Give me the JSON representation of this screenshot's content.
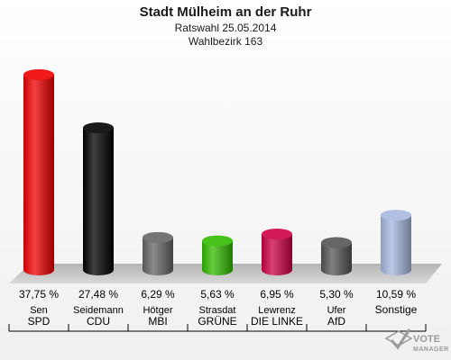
{
  "header": {
    "title": "Stadt Mülheim an der Ruhr",
    "subtitle": "Ratswahl 25.05.2014",
    "district": "Wahlbezirk 163"
  },
  "chart_data": {
    "type": "bar",
    "title": "Stadt Mülheim an der Ruhr",
    "subtitle": "Ratswahl 25.05.2014",
    "caption": "Wahlbezirk 163",
    "categories": [
      "SPD",
      "CDU",
      "MBI",
      "GRÜNE",
      "DIE LINKE",
      "AfD",
      "Sonstige"
    ],
    "candidates": [
      "Sen",
      "Seidemann",
      "Hötger",
      "Strasdat",
      "Lewrenz",
      "Ufer",
      ""
    ],
    "values": [
      37.75,
      27.48,
      6.29,
      5.63,
      6.95,
      5.3,
      10.59
    ],
    "value_labels": [
      "37,75 %",
      "27,48 %",
      "6,29 %",
      "5,63 %",
      "6,95 %",
      "5,30 %",
      "10,59 %"
    ],
    "colors": [
      "#ee0000",
      "#000000",
      "#666666",
      "#33bb00",
      "#cc0044",
      "#555555",
      "#a8b8e0"
    ],
    "ylim": [
      0,
      40
    ],
    "grid": false,
    "legend": "none"
  },
  "logo": {
    "line1": "VOTE",
    "line2": "MANAGER"
  }
}
